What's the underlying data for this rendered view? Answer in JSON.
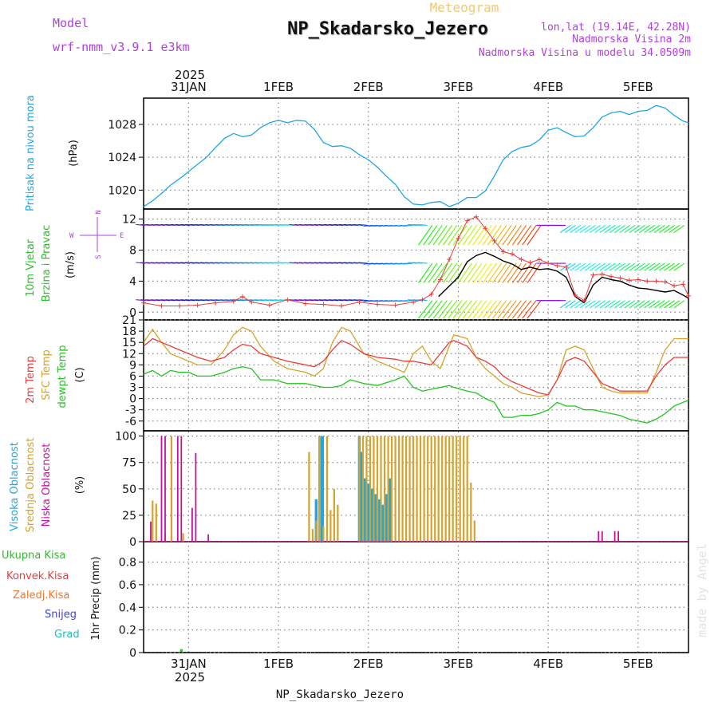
{
  "header": {
    "meteogram_label": "Meteogram",
    "title": "NP_Skadarsko_Jezero",
    "model_label": "Model",
    "model_name": "wrf-nmm_v3.9.1  e3km",
    "coords": "lon,lat (19.14E, 42.28N)",
    "altitude": "Nadmorska Visina 2m",
    "model_altitude": "Nadmorska Visina u modelu 34.0509m",
    "footer_title": "NP_Skadarsko_Jezero",
    "watermark": "made by Angel"
  },
  "colors": {
    "pressure": "#1ea7e6",
    "t2m": "#e83c3c",
    "sfc": "#d6a22a",
    "dewpt": "#22c51f",
    "high_cloud": "#1ea7e6",
    "mid_cloud": "#d6a22a",
    "low_cloud": "#c0139a",
    "precip_total": "#22c51f",
    "precip_conv": "#e83c3c",
    "precip_frozen": "#f0762a",
    "precip_snow": "#4040e6",
    "precip_hail": "#20c0b0",
    "wind_mean": "#000000",
    "wind_gust": "#e83c3c",
    "label_violet": "#b040e0"
  },
  "chart_data": [
    {
      "id": "time_axis",
      "type": "line",
      "year_label": "2025",
      "date_ticks": [
        {
          "label": "31JAN",
          "day": 0.5
        },
        {
          "label": "1FEB",
          "day": 1.5
        },
        {
          "label": "2FEB",
          "day": 2.5
        },
        {
          "label": "3FEB",
          "day": 3.5
        },
        {
          "label": "4FEB",
          "day": 4.5
        },
        {
          "label": "5FEB",
          "day": 5.5
        }
      ],
      "xlim_days": [
        0,
        6.06
      ]
    },
    {
      "id": "pressure",
      "type": "line",
      "ylabel_side": "Pritisak na nivou mora",
      "ylabel": "(hPa)",
      "yticks": [
        1020,
        1024,
        1028
      ],
      "ylim": [
        1017.7,
        1031.2
      ],
      "series": [
        {
          "name": "pressure",
          "x": [
            0.0,
            0.1,
            0.2,
            0.3,
            0.45,
            0.55,
            0.7,
            0.8,
            0.9,
            1.0,
            1.1,
            1.2,
            1.3,
            1.4,
            1.5,
            1.6,
            1.7,
            1.8,
            1.9,
            2.0,
            2.1,
            2.2,
            2.3,
            2.4,
            2.5,
            2.6,
            2.7,
            2.8,
            2.9,
            3.0,
            3.1,
            3.2,
            3.3,
            3.4,
            3.5,
            3.6,
            3.7,
            3.8,
            3.9,
            4.0,
            4.1,
            4.2,
            4.3,
            4.4,
            4.5,
            4.6,
            4.7,
            4.8,
            4.9,
            5.0,
            5.1,
            5.2,
            5.3,
            5.4,
            5.5,
            5.6,
            5.7,
            5.8,
            5.9,
            6.0,
            6.06
          ],
          "values": [
            1018.0,
            1018.7,
            1019.6,
            1020.6,
            1021.8,
            1022.7,
            1024.0,
            1025.2,
            1026.3,
            1026.9,
            1026.5,
            1026.7,
            1027.6,
            1028.2,
            1028.5,
            1028.2,
            1028.5,
            1028.4,
            1027.4,
            1025.8,
            1025.3,
            1025.4,
            1025.1,
            1024.3,
            1023.7,
            1022.8,
            1021.7,
            1020.7,
            1019.2,
            1018.3,
            1018.2,
            1018.5,
            1018.6,
            1018.0,
            1018.4,
            1019.1,
            1019.1,
            1019.9,
            1021.7,
            1023.7,
            1024.7,
            1025.2,
            1025.4,
            1026.1,
            1027.3,
            1027.6,
            1027.0,
            1026.5,
            1026.6,
            1027.6,
            1028.9,
            1029.4,
            1029.6,
            1029.2,
            1029.6,
            1029.7,
            1030.3,
            1030.0,
            1029.1,
            1028.4,
            1028.2
          ]
        }
      ]
    },
    {
      "id": "wind",
      "type": "line",
      "ylabel_side_a": "10m Vjetar",
      "ylabel_side_b": "Brzina i Pravac",
      "ylabel": "(m/s)",
      "compass": {
        "n": "N",
        "s": "S",
        "w": "W",
        "e": "E"
      },
      "yticks": [
        0,
        4,
        8,
        12
      ],
      "ylim": [
        -1,
        13.3
      ],
      "barb_levels": [
        1.5,
        6.3,
        11.2
      ],
      "series": [
        {
          "name": "wind speed",
          "x": [
            3.28,
            3.5,
            3.6,
            3.7,
            3.8,
            3.9,
            4.0,
            4.1,
            4.2,
            4.3,
            4.4,
            4.5,
            4.6,
            4.7,
            4.8,
            4.9,
            5.0,
            5.1,
            5.2,
            5.3,
            5.4,
            5.5,
            5.6,
            5.7,
            5.8,
            5.9,
            6.0,
            6.06
          ],
          "values": [
            2.0,
            4.5,
            6.5,
            7.3,
            7.7,
            7.2,
            6.6,
            6.2,
            5.5,
            5.8,
            5.5,
            5.6,
            5.3,
            4.5,
            2.0,
            1.2,
            3.5,
            4.5,
            4.2,
            4.0,
            3.5,
            3.1,
            3.0,
            2.8,
            2.6,
            2.8,
            2.2,
            1.8
          ]
        },
        {
          "name": "wind gust",
          "x": [
            0.0,
            0.2,
            0.4,
            0.6,
            0.8,
            1.0,
            1.1,
            1.2,
            1.4,
            1.6,
            1.8,
            2.0,
            2.2,
            2.4,
            2.6,
            2.8,
            3.0,
            3.1,
            3.2,
            3.3,
            3.4,
            3.5,
            3.6,
            3.7,
            3.8,
            3.9,
            4.0,
            4.1,
            4.2,
            4.3,
            4.4,
            4.5,
            4.6,
            4.7,
            4.8,
            4.9,
            5.0,
            5.1,
            5.2,
            5.3,
            5.4,
            5.5,
            5.6,
            5.7,
            5.8,
            5.9,
            6.0,
            6.06
          ],
          "values": [
            1.2,
            0.8,
            0.8,
            0.9,
            1.2,
            1.4,
            2.0,
            1.3,
            0.9,
            1.6,
            1.1,
            1.0,
            0.8,
            1.3,
            1.0,
            0.9,
            1.3,
            1.6,
            2.3,
            4.2,
            6.8,
            9.5,
            11.8,
            12.3,
            10.8,
            9.2,
            7.8,
            7.5,
            6.8,
            6.4,
            6.8,
            6.3,
            6.0,
            5.8,
            2.2,
            1.5,
            4.8,
            4.9,
            4.6,
            4.4,
            4.1,
            4.2,
            4.0,
            4.0,
            3.9,
            3.4,
            3.6,
            2.1
          ]
        }
      ]
    },
    {
      "id": "temperature",
      "type": "line",
      "ylabel_side_a": "2m Temp",
      "ylabel_side_b": "SFC Temp",
      "ylabel_side_c": "dewpt Temp",
      "ylabel": "(C)",
      "yticks": [
        -6,
        -3,
        0,
        3,
        6,
        9,
        12,
        15,
        18,
        21
      ],
      "ylim": [
        -8.6,
        21
      ],
      "series": [
        {
          "name": "2m Temp",
          "x": [
            0.0,
            0.1,
            0.2,
            0.3,
            0.4,
            0.5,
            0.6,
            0.75,
            0.9,
            1.0,
            1.1,
            1.2,
            1.3,
            1.45,
            1.6,
            1.8,
            1.9,
            2.0,
            2.1,
            2.2,
            2.3,
            2.45,
            2.6,
            2.8,
            2.9,
            3.0,
            3.1,
            3.2,
            3.3,
            3.4,
            3.45,
            3.6,
            3.7,
            3.8,
            3.9,
            4.0,
            4.1,
            4.2,
            4.3,
            4.4,
            4.5,
            4.6,
            4.7,
            4.8,
            4.9,
            5.0,
            5.1,
            5.2,
            5.3,
            5.4,
            5.5,
            5.6,
            5.7,
            5.8,
            5.9,
            6.0,
            6.06
          ],
          "values": [
            14,
            16,
            15,
            14,
            13,
            12,
            11,
            10,
            11,
            13,
            14.5,
            14,
            12,
            11,
            10,
            9,
            8.5,
            10,
            13,
            15.5,
            14.5,
            12,
            11,
            10.5,
            10,
            10,
            9.5,
            9,
            12,
            15,
            15.5,
            14,
            11,
            10,
            8.5,
            6,
            4.5,
            3.5,
            2.5,
            1.5,
            1,
            5,
            10,
            11,
            10,
            7,
            4,
            3,
            2,
            2,
            2,
            2,
            6,
            9,
            11,
            11,
            11
          ]
        },
        {
          "name": "SFC Temp",
          "x": [
            0.0,
            0.1,
            0.2,
            0.3,
            0.4,
            0.5,
            0.6,
            0.75,
            0.9,
            1.0,
            1.1,
            1.2,
            1.3,
            1.45,
            1.6,
            1.8,
            1.9,
            2.0,
            2.1,
            2.2,
            2.3,
            2.45,
            2.6,
            2.8,
            2.9,
            3.0,
            3.1,
            3.2,
            3.3,
            3.4,
            3.45,
            3.6,
            3.7,
            3.8,
            3.9,
            4.0,
            4.1,
            4.2,
            4.3,
            4.4,
            4.5,
            4.6,
            4.7,
            4.8,
            4.9,
            5.0,
            5.1,
            5.2,
            5.3,
            5.4,
            5.5,
            5.6,
            5.7,
            5.8,
            5.9,
            6.0,
            6.06
          ],
          "values": [
            15,
            18.5,
            15,
            12,
            11,
            10,
            9,
            9,
            13,
            17,
            19,
            18,
            14,
            10,
            8,
            7,
            6,
            8,
            15,
            19,
            18,
            12,
            10,
            8,
            7,
            12,
            14,
            10,
            8,
            14,
            17,
            16,
            11,
            8,
            6,
            4,
            3,
            1.5,
            1,
            0.5,
            1,
            5,
            13,
            14,
            13,
            8,
            3,
            2,
            1.5,
            1.5,
            1.5,
            1.5,
            7,
            13,
            16,
            16,
            16
          ]
        },
        {
          "name": "dewpt Temp",
          "x": [
            0.0,
            0.1,
            0.2,
            0.3,
            0.4,
            0.5,
            0.6,
            0.75,
            0.9,
            1.0,
            1.1,
            1.2,
            1.3,
            1.45,
            1.6,
            1.8,
            1.9,
            2.0,
            2.1,
            2.2,
            2.3,
            2.45,
            2.6,
            2.8,
            2.9,
            3.0,
            3.1,
            3.2,
            3.3,
            3.4,
            3.45,
            3.6,
            3.7,
            3.8,
            3.9,
            4.0,
            4.1,
            4.2,
            4.3,
            4.4,
            4.5,
            4.6,
            4.7,
            4.8,
            4.9,
            5.0,
            5.1,
            5.2,
            5.3,
            5.4,
            5.5,
            5.6,
            5.7,
            5.8,
            5.9,
            6.0,
            6.06
          ],
          "values": [
            6.5,
            7.5,
            6,
            7.5,
            7,
            7,
            6,
            6,
            7,
            8,
            8.5,
            8,
            5,
            5,
            4,
            4,
            3.5,
            3,
            3,
            3.5,
            5,
            4,
            3.5,
            5,
            6,
            3,
            2,
            2.5,
            3,
            3.5,
            3,
            2,
            1.5,
            0,
            -1,
            -5,
            -5,
            -4.5,
            -4.5,
            -4,
            -3,
            -1,
            -2,
            -2,
            -3,
            -3,
            -3.5,
            -4,
            -4.5,
            -5.5,
            -6,
            -6.5,
            -5.5,
            -4,
            -2,
            -1,
            -0.5
          ]
        }
      ]
    },
    {
      "id": "cloud_cover",
      "type": "bar",
      "ylabel_side_a": "Visoka Oblacnost",
      "ylabel_side_b": "Srednja Oblacnost",
      "ylabel_side_c": "Niska Oblacnost",
      "ylabel": "(%)",
      "yticks": [
        0,
        25,
        50,
        75,
        100
      ],
      "ylim": [
        0,
        105
      ],
      "series": [
        {
          "name": "Visoka Oblacnost",
          "x": [
            1.88,
            1.92,
            1.96,
            1.99,
            2.4,
            2.42,
            2.46,
            2.5,
            2.54,
            2.58,
            2.62,
            2.66,
            2.7,
            2.74
          ],
          "values": [
            0,
            40,
            100,
            100,
            100,
            85,
            60,
            55,
            50,
            45,
            40,
            35,
            45,
            60
          ]
        },
        {
          "name": "Srednja Oblacnost",
          "x": [
            0.1,
            0.14,
            0.24,
            0.31,
            0.44,
            1.84,
            1.88,
            1.92,
            1.96,
            2.0,
            2.04,
            2.08,
            2.12,
            2.16,
            2.4,
            2.44,
            2.48,
            2.52,
            2.56,
            2.6,
            2.64,
            2.68,
            2.72,
            2.76,
            2.8,
            2.84,
            2.88,
            2.92,
            2.96,
            3.0,
            3.04,
            3.08,
            3.12,
            3.16,
            3.2,
            3.24,
            3.28,
            3.32,
            3.36,
            3.4,
            3.44,
            3.48,
            3.52,
            3.56,
            3.6,
            3.64,
            3.68
          ],
          "values": [
            39,
            36,
            8,
            100,
            8,
            85,
            12,
            20,
            100,
            15,
            100,
            30,
            50,
            35,
            100,
            100,
            100,
            100,
            100,
            100,
            100,
            100,
            100,
            100,
            100,
            100,
            100,
            100,
            100,
            100,
            100,
            100,
            100,
            100,
            100,
            100,
            100,
            100,
            100,
            100,
            100,
            100,
            100,
            100,
            100,
            56,
            20
          ]
        },
        {
          "name": "Niska Oblacnost",
          "x": [
            0.08,
            0.2,
            0.24,
            0.38,
            0.42,
            0.54,
            0.58,
            0.72,
            5.06,
            5.1,
            5.24,
            5.28
          ],
          "values": [
            19,
            100,
            100,
            100,
            100,
            32,
            84,
            7,
            10,
            10,
            10,
            10
          ]
        }
      ]
    },
    {
      "id": "precip",
      "type": "bar",
      "legend": [
        "Ukupna Kisa",
        "Konvek.Kisa",
        "Zaledj.Kisa",
        "Snijeg",
        "Grad"
      ],
      "ylabel": "1hr Precip (mm)",
      "yticks": [
        0,
        0.2,
        0.4,
        0.6,
        0.8
      ],
      "ylim": [
        0,
        0.98
      ],
      "series": [
        {
          "name": "Ukupna Kisa",
          "x": [
            0.42
          ],
          "values": [
            0.03
          ]
        }
      ]
    }
  ]
}
